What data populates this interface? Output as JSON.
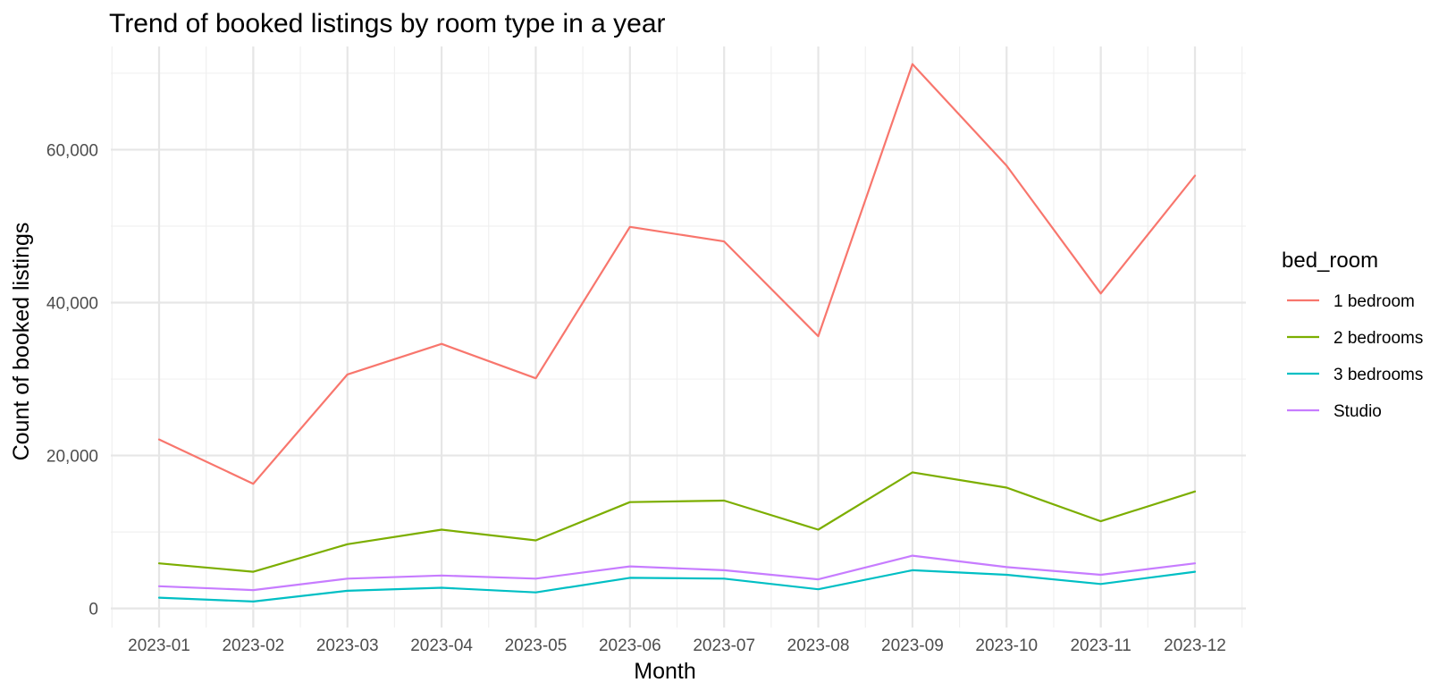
{
  "chart_data": {
    "type": "line",
    "title": "Trend of booked listings by room type in a year",
    "xlabel": "Month",
    "ylabel": "Count of booked listings",
    "categories": [
      "2023-01",
      "2023-02",
      "2023-03",
      "2023-04",
      "2023-05",
      "2023-06",
      "2023-07",
      "2023-08",
      "2023-09",
      "2023-10",
      "2023-11",
      "2023-12"
    ],
    "yticks": [
      0,
      20000,
      40000,
      60000
    ],
    "ytick_labels": [
      "0",
      "20,000",
      "40,000",
      "60,000"
    ],
    "ylim": [
      -2500,
      73500
    ],
    "grid": true,
    "legend": {
      "title": "bed_room",
      "position": "right"
    },
    "series": [
      {
        "name": "1 bedroom",
        "color": "#F8766D",
        "values": [
          22100,
          16300,
          30600,
          34600,
          30100,
          49900,
          48000,
          35600,
          71200,
          57900,
          41200,
          56600
        ]
      },
      {
        "name": "2 bedrooms",
        "color": "#7CAE00",
        "values": [
          5900,
          4800,
          8400,
          10300,
          8900,
          13900,
          14100,
          10300,
          17800,
          15800,
          11400,
          15300
        ]
      },
      {
        "name": "3 bedrooms",
        "color": "#00BFC4",
        "values": [
          1400,
          900,
          2300,
          2700,
          2100,
          4000,
          3900,
          2500,
          5000,
          4400,
          3200,
          4800
        ]
      },
      {
        "name": "Studio",
        "color": "#C77CFF",
        "values": [
          2900,
          2400,
          3900,
          4300,
          3900,
          5500,
          5000,
          3800,
          6900,
          5400,
          4400,
          5900
        ]
      }
    ]
  }
}
